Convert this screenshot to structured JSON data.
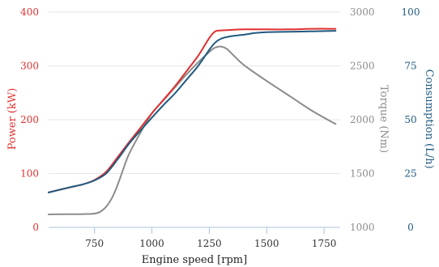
{
  "chart_data": {
    "type": "line",
    "grid": true,
    "legend": "none",
    "xlabel": "Engine speed [rpm]",
    "xlim": [
      550,
      1820
    ],
    "xticks": [
      750,
      1000,
      1250,
      1500,
      1750
    ],
    "axes": {
      "power": {
        "label": "Power (kW)",
        "lim": [
          0,
          400
        ],
        "ticks": [
          0,
          100,
          200,
          300,
          400
        ],
        "color": "#e03030"
      },
      "torque": {
        "label": "Torque (Nm)",
        "lim": [
          1000,
          3000
        ],
        "ticks": [
          1000,
          1500,
          2000,
          2500,
          3000
        ],
        "color": "#8c8c8c"
      },
      "consumption": {
        "label": "Consumption (L/h)",
        "lim": [
          0,
          100
        ],
        "ticks": [
          0,
          25,
          50,
          75,
          100
        ],
        "color": "#1f5a80"
      }
    },
    "series": [
      {
        "axis": "power",
        "color": "#e03030",
        "x": [
          550,
          600,
          650,
          700,
          750,
          800,
          850,
          900,
          950,
          1000,
          1050,
          1100,
          1150,
          1200,
          1250,
          1275,
          1300,
          1350,
          1400,
          1500,
          1600,
          1700,
          1800
        ],
        "values": [
          65,
          70,
          75,
          80,
          88,
          103,
          130,
          158,
          185,
          212,
          237,
          262,
          290,
          318,
          352,
          364,
          366,
          367,
          368,
          368,
          368,
          369,
          369
        ]
      },
      {
        "axis": "torque",
        "color": "#8c8c8c",
        "x": [
          550,
          600,
          650,
          700,
          750,
          775,
          800,
          825,
          850,
          875,
          900,
          950,
          1000,
          1050,
          1100,
          1150,
          1200,
          1250,
          1275,
          1300,
          1325,
          1350,
          1400,
          1500,
          1600,
          1700,
          1800
        ],
        "values": [
          1120,
          1122,
          1122,
          1123,
          1128,
          1145,
          1190,
          1270,
          1390,
          1540,
          1680,
          1880,
          2060,
          2180,
          2300,
          2420,
          2530,
          2630,
          2670,
          2680,
          2660,
          2610,
          2510,
          2360,
          2220,
          2080,
          1960
        ]
      },
      {
        "axis": "consumption",
        "color": "#1f5a80",
        "x": [
          550,
          600,
          650,
          700,
          750,
          800,
          850,
          900,
          950,
          1000,
          1050,
          1100,
          1150,
          1200,
          1250,
          1275,
          1300,
          1325,
          1350,
          1400,
          1450,
          1500,
          1600,
          1700,
          1800
        ],
        "values": [
          16.2,
          17.5,
          18.8,
          20,
          21.8,
          25,
          31.5,
          38.8,
          45,
          51,
          56.8,
          62.2,
          68.5,
          74.8,
          82.5,
          85.8,
          87.6,
          88.4,
          88.9,
          89.5,
          90.3,
          90.7,
          90.9,
          91.1,
          91.3
        ]
      }
    ]
  }
}
